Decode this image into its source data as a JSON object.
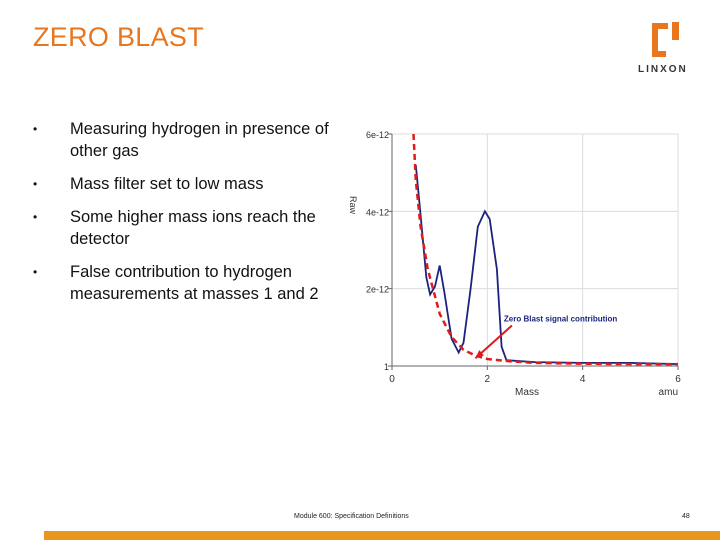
{
  "slide": {
    "title": "ZERO BLAST",
    "bullets": [
      "Measuring hydrogen in presence of other gas",
      "Mass filter set to low mass",
      "Some higher mass ions reach the detector",
      "False contribution to hydrogen measurements at masses 1 and 2"
    ]
  },
  "logo": {
    "text": "LINXON"
  },
  "footer": {
    "text": "Module 600: Specification Definitions",
    "page": "48"
  },
  "colors": {
    "accent": "#e8761e",
    "bar": "#e8961e",
    "spectrum": "#1a237e",
    "zeroblast": "#e01b1b"
  },
  "chart_data": {
    "type": "line",
    "xlabel": "Mass",
    "xunit": "amu",
    "ylabel": "Raw",
    "xlim": [
      0,
      6
    ],
    "x_ticks": [
      "0",
      "2",
      "4",
      "6"
    ],
    "y_ticks": [
      "1",
      "2e-12",
      "4e-12",
      "6e-12"
    ],
    "ylim": [
      0,
      6e-12
    ],
    "grid": true,
    "series": [
      {
        "style": "solid",
        "color": "#1a237e",
        "points": [
          [
            0.5,
            5.2e-12
          ],
          [
            0.6,
            3.9e-12
          ],
          [
            0.72,
            2.3e-12
          ],
          [
            0.8,
            1.85e-12
          ],
          [
            0.9,
            2.05e-12
          ],
          [
            1.0,
            2.6e-12
          ],
          [
            1.1,
            1.9e-12
          ],
          [
            1.25,
            7e-13
          ],
          [
            1.4,
            3.5e-13
          ],
          [
            1.5,
            6e-13
          ],
          [
            1.65,
            2e-12
          ],
          [
            1.8,
            3.6e-12
          ],
          [
            1.95,
            4e-12
          ],
          [
            2.05,
            3.8e-12
          ],
          [
            2.2,
            2.5e-12
          ],
          [
            2.3,
            5e-13
          ],
          [
            2.4,
            1.5e-13
          ],
          [
            3.0,
            1e-13
          ],
          [
            4.0,
            8e-14
          ],
          [
            5.0,
            8e-14
          ],
          [
            6.0,
            5e-14
          ]
        ]
      },
      {
        "style": "dashed",
        "color": "#e01b1b",
        "points": [
          [
            0.45,
            6e-12
          ],
          [
            0.5,
            4.8e-12
          ],
          [
            0.6,
            3.6e-12
          ],
          [
            0.75,
            2.5e-12
          ],
          [
            1.0,
            1.35e-12
          ],
          [
            1.25,
            7.5e-13
          ],
          [
            1.5,
            4.2e-13
          ],
          [
            1.75,
            2.7e-13
          ],
          [
            2.0,
            1.8e-13
          ],
          [
            2.5,
            1.2e-13
          ],
          [
            3.0,
            8e-14
          ],
          [
            4.0,
            6e-14
          ],
          [
            5.0,
            5e-14
          ],
          [
            6.0,
            5e-14
          ]
        ]
      }
    ],
    "annotations": [
      {
        "text": "Zero Blast signal contribution",
        "x": 2.6,
        "y": 1.1e-12,
        "arrow_to": [
          1.75,
          2e-13
        ]
      }
    ]
  }
}
